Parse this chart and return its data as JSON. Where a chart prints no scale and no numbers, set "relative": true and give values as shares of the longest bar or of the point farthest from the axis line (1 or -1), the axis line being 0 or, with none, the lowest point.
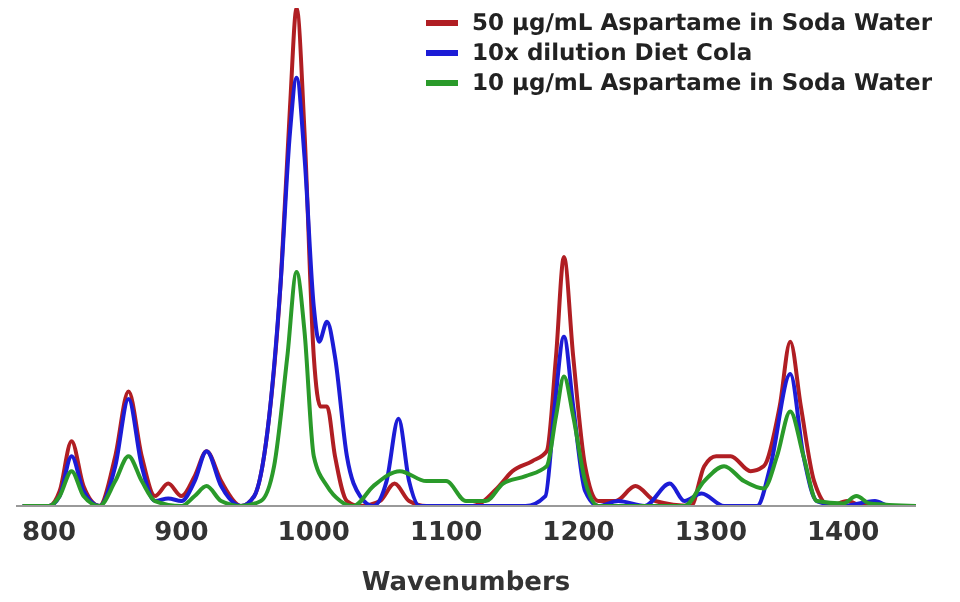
{
  "chart_data": {
    "type": "line",
    "xlabel": "Wavenumbers",
    "relative": true,
    "xlim": [
      775,
      1455
    ],
    "xticks": [
      800,
      900,
      1000,
      1100,
      1200,
      1300,
      1400
    ],
    "legend": "top right",
    "grid": false,
    "marker": "none",
    "line_style": "solid",
    "series": [
      {
        "name": "50 μg/mL Aspartame in Soda Water",
        "color": "#b01e23",
        "x": [
          780,
          800,
          808,
          817,
          826,
          838,
          850,
          860,
          870,
          880,
          890,
          900,
          910,
          919,
          930,
          945,
          955,
          965,
          975,
          982,
          987,
          993,
          1000,
          1005,
          1010,
          1016,
          1025,
          1035,
          1050,
          1061,
          1072,
          1085,
          1120,
          1140,
          1150,
          1165,
          1176,
          1183,
          1189,
          1196,
          1205,
          1215,
          1228,
          1243,
          1258,
          1285,
          1295,
          1304,
          1315,
          1330,
          1340,
          1352,
          1360,
          1368,
          1378,
          1390,
          1403,
          1415,
          1455
        ],
        "values": [
          0,
          0,
          0.03,
          0.13,
          0.04,
          0,
          0.1,
          0.23,
          0.1,
          0.02,
          0.045,
          0.02,
          0.06,
          0.11,
          0.05,
          0,
          0.02,
          0.15,
          0.45,
          0.8,
          1.0,
          0.75,
          0.3,
          0.2,
          0.2,
          0.1,
          0.01,
          0,
          0.01,
          0.045,
          0.01,
          0,
          0,
          0.04,
          0.07,
          0.09,
          0.11,
          0.3,
          0.5,
          0.3,
          0.08,
          0.01,
          0.01,
          0.04,
          0.01,
          0,
          0.08,
          0.1,
          0.1,
          0.07,
          0.08,
          0.2,
          0.33,
          0.2,
          0.05,
          0,
          0.01,
          0,
          0
        ]
      },
      {
        "name": "10x dilution Diet Cola",
        "color": "#1c1cd6",
        "x": [
          780,
          800,
          808,
          817,
          826,
          838,
          850,
          860,
          870,
          880,
          890,
          900,
          910,
          919,
          930,
          945,
          955,
          965,
          975,
          982,
          987,
          993,
          1000,
          1004,
          1010,
          1016,
          1025,
          1035,
          1045,
          1055,
          1064,
          1072,
          1080,
          1160,
          1175,
          1182,
          1189,
          1196,
          1205,
          1215,
          1230,
          1250,
          1269,
          1280,
          1293,
          1310,
          1335,
          1345,
          1360,
          1370,
          1380,
          1400,
          1424,
          1435,
          1455
        ],
        "values": [
          0,
          0,
          0.02,
          0.1,
          0.03,
          0,
          0.08,
          0.215,
          0.08,
          0.01,
          0.015,
          0.01,
          0.05,
          0.11,
          0.04,
          0,
          0.02,
          0.15,
          0.45,
          0.75,
          0.86,
          0.7,
          0.4,
          0.33,
          0.37,
          0.3,
          0.1,
          0.02,
          0,
          0.05,
          0.175,
          0.05,
          0,
          0,
          0.02,
          0.2,
          0.34,
          0.2,
          0.03,
          0,
          0.01,
          0,
          0.045,
          0.01,
          0.025,
          0,
          0,
          0.08,
          0.265,
          0.1,
          0.01,
          0,
          0.01,
          0,
          0
        ]
      },
      {
        "name": "10 μg/mL Aspartame in Soda Water",
        "color": "#2a9a2a",
        "x": [
          780,
          800,
          808,
          817,
          826,
          838,
          850,
          860,
          870,
          880,
          900,
          910,
          919,
          930,
          945,
          960,
          970,
          980,
          987,
          993,
          1000,
          1010,
          1020,
          1030,
          1045,
          1065,
          1085,
          1100,
          1115,
          1130,
          1143,
          1160,
          1176,
          1183,
          1189,
          1196,
          1205,
          1215,
          1280,
          1295,
          1310,
          1325,
          1340,
          1350,
          1360,
          1370,
          1380,
          1400,
          1410,
          1420,
          1455
        ],
        "values": [
          0,
          0,
          0.02,
          0.07,
          0.02,
          0,
          0.05,
          0.1,
          0.05,
          0.01,
          0,
          0.02,
          0.04,
          0.01,
          0,
          0.01,
          0.08,
          0.3,
          0.47,
          0.35,
          0.1,
          0.04,
          0.01,
          0,
          0.04,
          0.07,
          0.05,
          0.05,
          0.01,
          0.01,
          0.045,
          0.06,
          0.08,
          0.18,
          0.26,
          0.18,
          0.05,
          0,
          0,
          0.05,
          0.08,
          0.05,
          0.035,
          0.1,
          0.19,
          0.1,
          0.01,
          0.005,
          0.02,
          0.005,
          0
        ]
      }
    ]
  }
}
